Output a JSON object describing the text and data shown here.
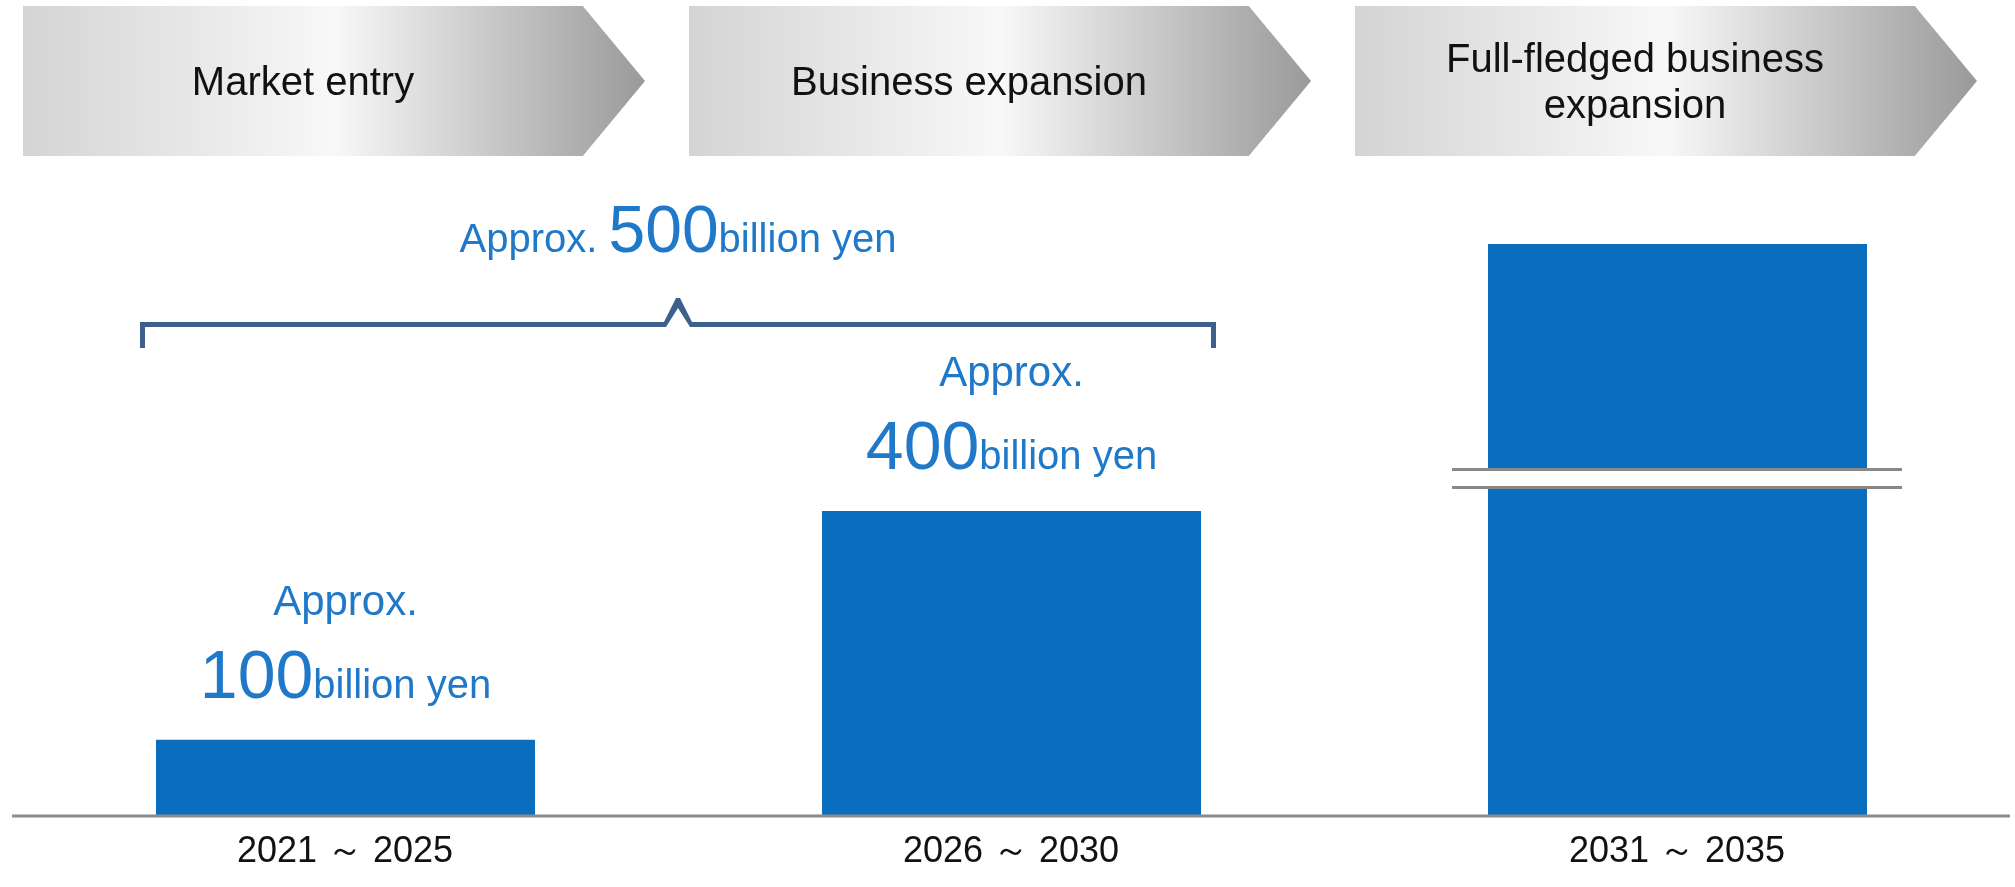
{
  "chart_data": {
    "type": "bar",
    "categories": [
      "2021 ～ 2025",
      "2026 ～ 2030",
      "2031 ～ 2035"
    ],
    "values": [
      100,
      400,
      750
    ],
    "color": "#0b6dbd",
    "value_labels": [
      "Approx. 100billion yen",
      "Approx. 400billion yen",
      null
    ],
    "annotations": [
      "Market entry",
      "Business expansion",
      "Full-fledged business expansion",
      "Approx. 500billion yen"
    ]
  }
}
